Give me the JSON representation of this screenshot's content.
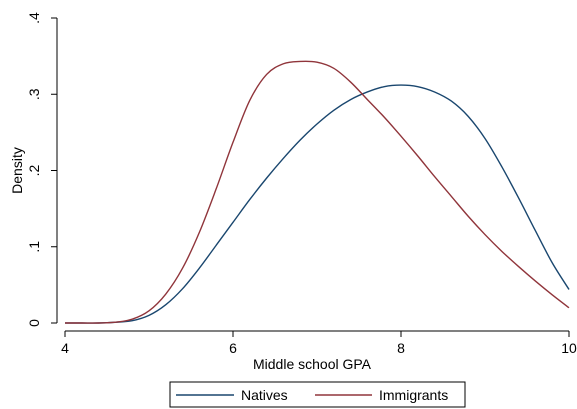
{
  "chart_data": {
    "type": "line",
    "xlabel": "Middle school GPA",
    "ylabel": "Density",
    "xlim": [
      4,
      10
    ],
    "ylim": [
      0,
      0.4
    ],
    "x_ticks": [
      4,
      6,
      8,
      10
    ],
    "x_tick_labels": [
      "4",
      "6",
      "8",
      "10"
    ],
    "y_ticks": [
      0,
      0.1,
      0.2,
      0.3,
      0.4
    ],
    "y_tick_labels": [
      "0",
      ".1",
      ".2",
      ".3",
      ".4"
    ],
    "grid": false,
    "legend_position": "bottom",
    "x": [
      4.0,
      4.2,
      4.4,
      4.6,
      4.8,
      5.0,
      5.2,
      5.4,
      5.6,
      5.8,
      6.0,
      6.2,
      6.4,
      6.6,
      6.8,
      7.0,
      7.2,
      7.4,
      7.6,
      7.8,
      8.0,
      8.2,
      8.4,
      8.6,
      8.8,
      9.0,
      9.2,
      9.4,
      9.6,
      9.8,
      10.0
    ],
    "series": [
      {
        "name": "Natives",
        "color": "#1a476f",
        "values": [
          0.0,
          0.0,
          0.0,
          0.001,
          0.003,
          0.01,
          0.024,
          0.045,
          0.072,
          0.102,
          0.132,
          0.162,
          0.19,
          0.216,
          0.24,
          0.261,
          0.279,
          0.293,
          0.303,
          0.31,
          0.312,
          0.31,
          0.303,
          0.291,
          0.271,
          0.242,
          0.205,
          0.164,
          0.121,
          0.079,
          0.044
        ]
      },
      {
        "name": "Immigrants",
        "color": "#90353b",
        "values": [
          0.0,
          0.0,
          0.0,
          0.001,
          0.005,
          0.016,
          0.038,
          0.072,
          0.119,
          0.176,
          0.237,
          0.292,
          0.326,
          0.34,
          0.343,
          0.342,
          0.334,
          0.316,
          0.293,
          0.27,
          0.245,
          0.219,
          0.192,
          0.166,
          0.14,
          0.116,
          0.094,
          0.074,
          0.055,
          0.037,
          0.02
        ]
      }
    ]
  }
}
